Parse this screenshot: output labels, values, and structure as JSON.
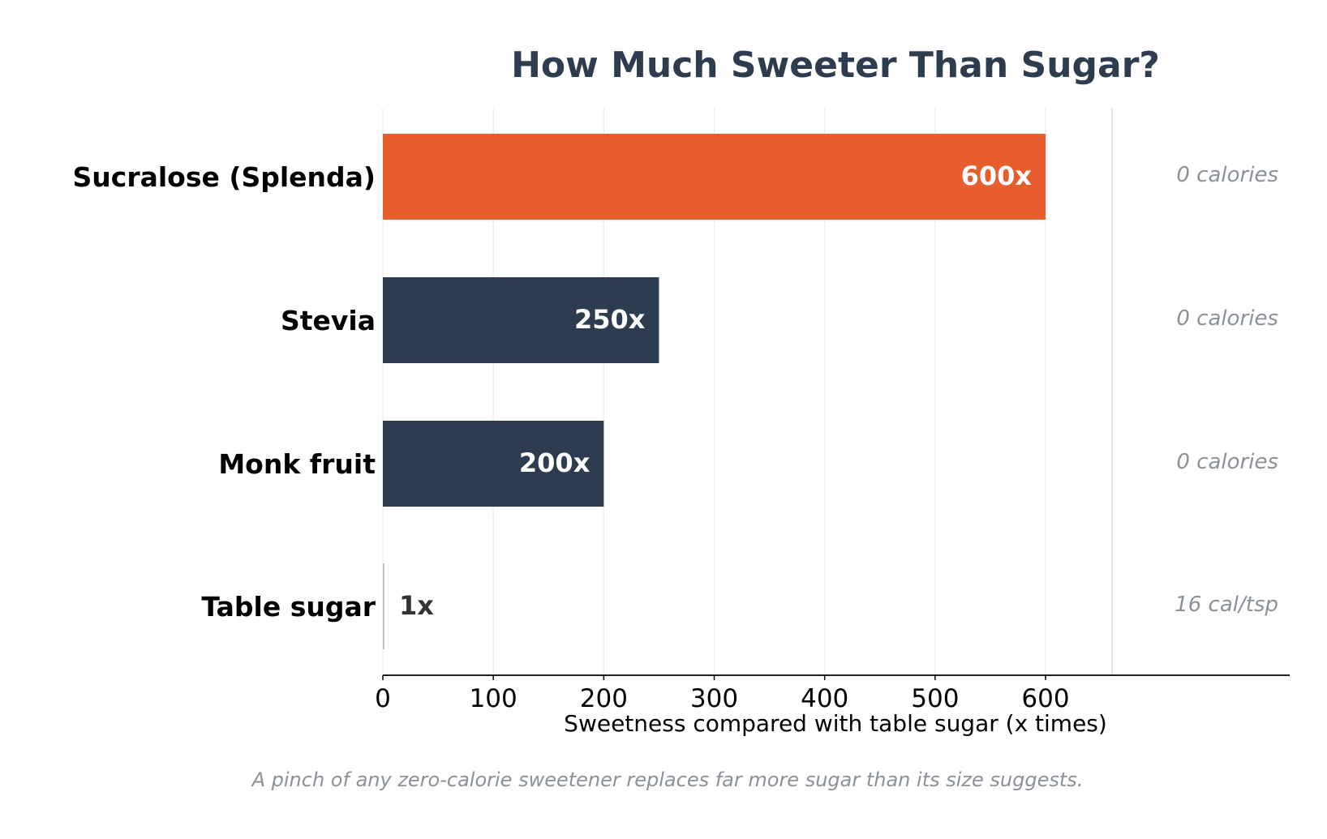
{
  "chart_data": {
    "type": "bar",
    "orientation": "horizontal",
    "title": "How Much Sweeter Than Sugar?",
    "xlabel": "Sweetness compared with table sugar (x times)",
    "ylabel": "",
    "xlim": [
      0,
      710
    ],
    "xticks": [
      0,
      100,
      200,
      300,
      400,
      500,
      600
    ],
    "grid": "vertical",
    "legend": "none",
    "categories": [
      "Sucralose (Splenda)",
      "Stevia",
      "Monk fruit",
      "Table sugar"
    ],
    "values": [
      600,
      250,
      200,
      1
    ],
    "value_labels": [
      "600x",
      "250x",
      "200x",
      "1x"
    ],
    "notes": [
      "0 calories",
      "0 calories",
      "0 calories",
      "16 cal/tsp"
    ],
    "caption": "A pinch of any zero-calorie sweetener replaces far more sugar than its size suggests."
  },
  "colors": {
    "title": "#2e3c4f",
    "highlight": "#e85d2c",
    "bar": "#2e3c4f",
    "baseline_bar": "#bbbbbb",
    "value_label_inside": "#ffffff",
    "value_label_outside": "#333333",
    "note": "#8a9199",
    "caption": "#8a9199",
    "grid": "#eeeeee",
    "divider": "#e3e3e3",
    "axis": "#000000"
  },
  "highlight_index": 0
}
